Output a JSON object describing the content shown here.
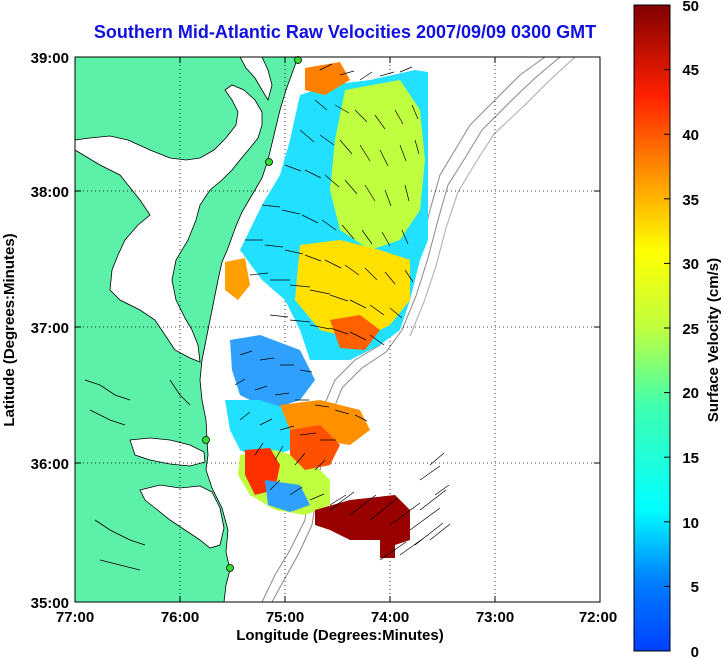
{
  "title": "Southern Mid-Atlantic Raw Velocities 2007/09/09 0300 GMT",
  "x_axis": {
    "label": "Longitude (Degrees:Minutes)",
    "ticks": [
      "77:00",
      "76:00",
      "75:00",
      "74:00",
      "73:00",
      "72:00"
    ],
    "range": [
      -77,
      -72
    ]
  },
  "y_axis": {
    "label": "Latitude (Degrees:Minutes)",
    "ticks": [
      "39:00",
      "38:00",
      "37:00",
      "36:00",
      "35:00"
    ],
    "range": [
      35,
      39
    ]
  },
  "colorbar": {
    "label": "Surface Velocity (cm/s)",
    "ticks": [
      "50",
      "45",
      "40",
      "35",
      "30",
      "25",
      "20",
      "15",
      "10",
      "5",
      "0"
    ],
    "range": [
      0,
      50
    ]
  },
  "colors": {
    "title": "#1010e0",
    "land": "#5cf0a8",
    "station": "#33dd33",
    "grid": "#000000"
  },
  "grid": "dotted"
}
